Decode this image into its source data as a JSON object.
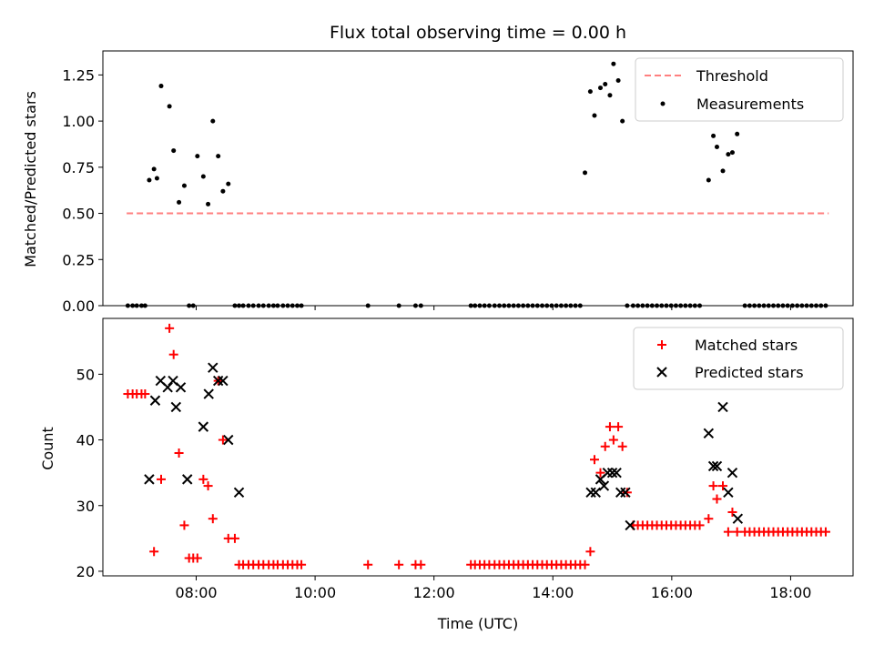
{
  "chart_data": [
    {
      "type": "scatter",
      "title": "Flux total observing time = 0.00 h",
      "xlabel": "",
      "ylabel": "Matched/Predicted stars",
      "xlim": [
        6.43,
        19.05
      ],
      "ylim": [
        0.0,
        1.38
      ],
      "xticks": [
        "08:00",
        "10:00",
        "12:00",
        "14:00",
        "16:00",
        "18:00"
      ],
      "xtick_values": [
        8,
        10,
        12,
        14,
        16,
        18
      ],
      "yticks": [
        "0.00",
        "0.25",
        "0.50",
        "0.75",
        "1.00",
        "1.25"
      ],
      "ytick_values": [
        0,
        0.25,
        0.5,
        0.75,
        1.0,
        1.25
      ],
      "legend_position": "top-right",
      "threshold": {
        "name": "Threshold",
        "color": "#ff7f7f",
        "value": 0.5,
        "x_range": [
          6.83,
          18.64
        ]
      },
      "series": [
        {
          "name": "Measurements",
          "color": "#000000",
          "x": [
            6.85,
            6.93,
            7.0,
            7.08,
            7.14,
            7.21,
            7.29,
            7.34,
            7.41,
            7.55,
            7.62,
            7.71,
            7.8,
            7.88,
            7.95,
            8.02,
            8.12,
            8.2,
            8.28,
            8.37,
            8.45,
            8.54,
            8.65,
            8.72,
            8.79,
            8.88,
            8.96,
            9.05,
            9.13,
            9.22,
            9.3,
            9.37,
            9.46,
            9.54,
            9.62,
            9.7,
            9.77,
            10.89,
            11.41,
            11.69,
            11.78,
            12.62,
            12.69,
            12.77,
            12.85,
            12.93,
            13.02,
            13.1,
            13.18,
            13.26,
            13.34,
            13.42,
            13.5,
            13.58,
            13.66,
            13.74,
            13.82,
            13.9,
            13.98,
            14.06,
            14.14,
            14.22,
            14.3,
            14.38,
            14.46,
            14.54,
            14.63,
            14.7,
            14.8,
            14.88,
            14.96,
            15.02,
            15.1,
            15.17,
            15.25,
            15.35,
            15.43,
            15.51,
            15.59,
            15.67,
            15.75,
            15.83,
            15.91,
            15.99,
            16.07,
            16.15,
            16.23,
            16.31,
            16.39,
            16.47,
            16.62,
            16.7,
            16.76,
            16.86,
            16.95,
            17.02,
            17.1,
            17.23,
            17.31,
            17.39,
            17.47,
            17.55,
            17.63,
            17.71,
            17.79,
            17.87,
            17.95,
            18.03,
            18.11,
            18.19,
            18.27,
            18.35,
            18.43,
            18.51,
            18.59
          ],
          "y": [
            0.0,
            0.0,
            0.0,
            0.0,
            0.0,
            0.68,
            0.74,
            0.69,
            1.19,
            1.08,
            0.84,
            0.56,
            0.65,
            0.0,
            0.0,
            0.81,
            0.7,
            0.55,
            1.0,
            0.81,
            0.62,
            0.66,
            0.0,
            0.0,
            0.0,
            0.0,
            0.0,
            0.0,
            0.0,
            0.0,
            0.0,
            0.0,
            0.0,
            0.0,
            0.0,
            0.0,
            0.0,
            0.0,
            0.0,
            0.0,
            0.0,
            0.0,
            0.0,
            0.0,
            0.0,
            0.0,
            0.0,
            0.0,
            0.0,
            0.0,
            0.0,
            0.0,
            0.0,
            0.0,
            0.0,
            0.0,
            0.0,
            0.0,
            0.0,
            0.0,
            0.0,
            0.0,
            0.0,
            0.0,
            0.0,
            0.72,
            1.16,
            1.03,
            1.18,
            1.2,
            1.14,
            1.31,
            1.22,
            1.0,
            0.0,
            0.0,
            0.0,
            0.0,
            0.0,
            0.0,
            0.0,
            0.0,
            0.0,
            0.0,
            0.0,
            0.0,
            0.0,
            0.0,
            0.0,
            0.0,
            0.68,
            0.92,
            0.86,
            0.73,
            0.82,
            0.83,
            0.93,
            0.0,
            0.0,
            0.0,
            0.0,
            0.0,
            0.0,
            0.0,
            0.0,
            0.0,
            0.0,
            0.0,
            0.0,
            0.0,
            0.0,
            0.0,
            0.0,
            0.0,
            0.0
          ]
        }
      ]
    },
    {
      "type": "scatter",
      "title": "",
      "xlabel": "Time (UTC)",
      "ylabel": "Count",
      "xlim": [
        6.43,
        19.05
      ],
      "ylim": [
        19.3,
        58.5
      ],
      "xticks": [
        "08:00",
        "10:00",
        "12:00",
        "14:00",
        "16:00",
        "18:00"
      ],
      "xtick_values": [
        8,
        10,
        12,
        14,
        16,
        18
      ],
      "yticks": [
        "20",
        "30",
        "40",
        "50"
      ],
      "ytick_values": [
        20,
        30,
        40,
        50
      ],
      "legend_position": "top-right",
      "series": [
        {
          "name": "Matched stars",
          "color": "#ff0000",
          "marker": "plus",
          "x": [
            6.85,
            6.93,
            7.0,
            7.08,
            7.14,
            7.29,
            7.41,
            7.55,
            7.62,
            7.71,
            7.8,
            7.88,
            7.95,
            8.02,
            8.12,
            8.2,
            8.28,
            8.37,
            8.45,
            8.54,
            8.65,
            8.72,
            8.79,
            8.88,
            8.96,
            9.05,
            9.13,
            9.22,
            9.3,
            9.37,
            9.46,
            9.54,
            9.62,
            9.7,
            9.77,
            10.89,
            11.41,
            11.69,
            11.78,
            12.62,
            12.69,
            12.77,
            12.85,
            12.93,
            13.02,
            13.1,
            13.18,
            13.26,
            13.34,
            13.42,
            13.5,
            13.58,
            13.66,
            13.74,
            13.82,
            13.9,
            13.98,
            14.06,
            14.14,
            14.22,
            14.3,
            14.38,
            14.46,
            14.54,
            14.63,
            14.7,
            14.8,
            14.88,
            14.96,
            15.02,
            15.1,
            15.17,
            15.25,
            15.35,
            15.43,
            15.51,
            15.59,
            15.67,
            15.75,
            15.83,
            15.91,
            15.99,
            16.07,
            16.15,
            16.23,
            16.31,
            16.39,
            16.47,
            16.62,
            16.7,
            16.76,
            16.86,
            16.95,
            17.02,
            17.1,
            17.23,
            17.31,
            17.39,
            17.47,
            17.55,
            17.63,
            17.71,
            17.79,
            17.87,
            17.95,
            18.03,
            18.11,
            18.19,
            18.27,
            18.35,
            18.43,
            18.51,
            18.59
          ],
          "y": [
            47,
            47,
            47,
            47,
            47,
            23,
            34,
            57,
            53,
            38,
            27,
            22,
            22,
            22,
            34,
            33,
            28,
            49,
            40,
            25,
            25,
            21,
            21,
            21,
            21,
            21,
            21,
            21,
            21,
            21,
            21,
            21,
            21,
            21,
            21,
            21,
            21,
            21,
            21,
            21,
            21,
            21,
            21,
            21,
            21,
            21,
            21,
            21,
            21,
            21,
            21,
            21,
            21,
            21,
            21,
            21,
            21,
            21,
            21,
            21,
            21,
            21,
            21,
            21,
            23,
            37,
            35,
            39,
            42,
            40,
            42,
            39,
            32,
            27,
            27,
            27,
            27,
            27,
            27,
            27,
            27,
            27,
            27,
            27,
            27,
            27,
            27,
            27,
            28,
            33,
            31,
            33,
            26,
            29,
            26,
            26,
            26,
            26,
            26,
            26,
            26,
            26,
            26,
            26,
            26,
            26,
            26,
            26,
            26,
            26,
            26,
            26,
            26
          ]
        },
        {
          "name": "Predicted stars",
          "color": "#000000",
          "marker": "x",
          "x": [
            7.21,
            7.31,
            7.4,
            7.52,
            7.61,
            7.66,
            7.74,
            7.85,
            8.12,
            8.21,
            8.28,
            8.37,
            8.45,
            8.54,
            8.72,
            14.64,
            14.72,
            14.8,
            14.86,
            14.92,
            15.0,
            15.07,
            15.14,
            15.22,
            15.3,
            16.62,
            16.7,
            16.76,
            16.86,
            16.95,
            17.02,
            17.11
          ],
          "y": [
            34,
            46,
            49,
            48,
            49,
            45,
            48,
            34,
            42,
            47,
            51,
            49,
            49,
            40,
            32,
            32,
            32,
            34,
            33,
            35,
            35,
            35,
            32,
            32,
            27,
            41,
            36,
            36,
            45,
            32,
            35,
            28
          ]
        }
      ]
    }
  ]
}
